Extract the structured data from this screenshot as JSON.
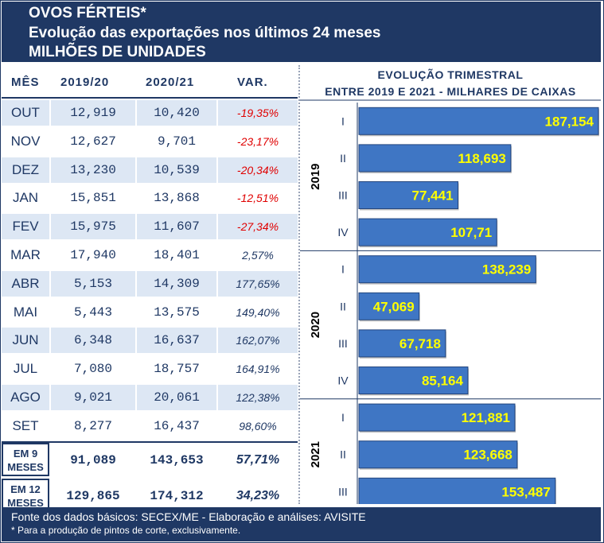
{
  "header": {
    "line1": "OVOS FÉRTEIS*",
    "line2": "Evolução das exportações nos últimos 24 meses",
    "line3": "MILHÕES DE UNIDADES"
  },
  "table": {
    "columns": [
      "MÊS",
      "2019/20",
      "2020/21",
      "VAR."
    ],
    "rows": [
      {
        "m": "OUT",
        "a": "12,919",
        "b": "10,420",
        "v": "-19,35%",
        "neg": true
      },
      {
        "m": "NOV",
        "a": "12,627",
        "b": "9,701",
        "v": "-23,17%",
        "neg": true
      },
      {
        "m": "DEZ",
        "a": "13,230",
        "b": "10,539",
        "v": "-20,34%",
        "neg": true
      },
      {
        "m": "JAN",
        "a": "15,851",
        "b": "13,868",
        "v": "-12,51%",
        "neg": true
      },
      {
        "m": "FEV",
        "a": "15,975",
        "b": "11,607",
        "v": "-27,34%",
        "neg": true
      },
      {
        "m": "MAR",
        "a": "17,940",
        "b": "18,401",
        "v": "2,57%",
        "neg": false
      },
      {
        "m": "ABR",
        "a": "5,153",
        "b": "14,309",
        "v": "177,65%",
        "neg": false
      },
      {
        "m": "MAI",
        "a": "5,443",
        "b": "13,575",
        "v": "149,40%",
        "neg": false
      },
      {
        "m": "JUN",
        "a": "6,348",
        "b": "16,637",
        "v": "162,07%",
        "neg": false
      },
      {
        "m": "JUL",
        "a": "7,080",
        "b": "18,757",
        "v": "164,91%",
        "neg": false
      },
      {
        "m": "AGO",
        "a": "9,021",
        "b": "20,061",
        "v": "122,38%",
        "neg": false
      },
      {
        "m": "SET",
        "a": "8,277",
        "b": "16,437",
        "v": "98,60%",
        "neg": false
      }
    ],
    "totals": [
      {
        "m1": "EM 9",
        "m2": "MESES",
        "a": "91,089",
        "b": "143,653",
        "v": "57,71%"
      },
      {
        "m1": "EM 12",
        "m2": "MESES",
        "a": "129,865",
        "b": "174,312",
        "v": "34,23%"
      }
    ]
  },
  "chart_data": {
    "type": "bar",
    "orientation": "horizontal",
    "title": "EVOLUÇÃO TRIMESTRAL",
    "subtitle": "ENTRE 2019 E 2021 - MILHARES DE CAIXAS",
    "groups": [
      {
        "year": "2019",
        "quarters": [
          "I",
          "II",
          "III",
          "IV"
        ],
        "values": [
          187.154,
          118.693,
          77.441,
          107.71
        ],
        "labels": [
          "187,154",
          "118,693",
          "77,441",
          "107,71"
        ]
      },
      {
        "year": "2020",
        "quarters": [
          "I",
          "II",
          "III",
          "IV"
        ],
        "values": [
          138.239,
          47.069,
          67.718,
          85.164
        ],
        "labels": [
          "138,239",
          "47,069",
          "67,718",
          "85,164"
        ]
      },
      {
        "year": "2021",
        "quarters": [
          "I",
          "II",
          "III"
        ],
        "values": [
          121.881,
          123.668,
          153.487
        ],
        "labels": [
          "121,881",
          "123,668",
          "153,487"
        ]
      }
    ],
    "xlim": [
      0,
      187.154
    ],
    "colors": {
      "bar": "#3f76c4",
      "label": "#ffff00",
      "text": "#1f3864"
    }
  },
  "footer": {
    "source": "Fonte dos dados básicos: SECEX/ME - Elaboração e análises: AVISITE",
    "note": "* Para a produção de pintos de corte, exclusivamente."
  }
}
